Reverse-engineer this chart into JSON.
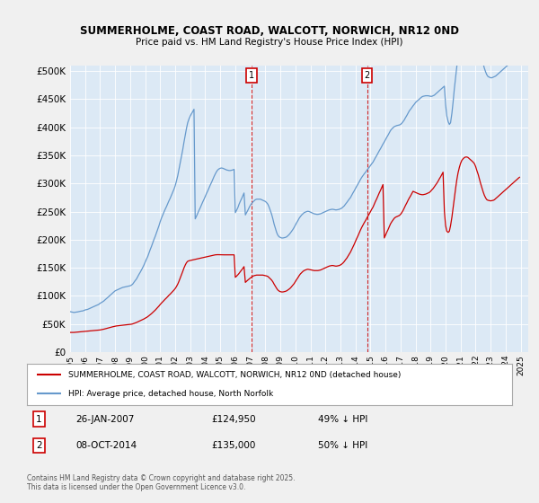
{
  "title": "SUMMERHOLME, COAST ROAD, WALCOTT, NORWICH, NR12 0ND",
  "subtitle": "Price paid vs. HM Land Registry's House Price Index (HPI)",
  "background_color": "#dce9f5",
  "plot_bg_color": "#dce9f5",
  "yticks": [
    0,
    50000,
    100000,
    150000,
    200000,
    250000,
    300000,
    350000,
    400000,
    450000,
    500000
  ],
  "xmin": 1995.0,
  "xmax": 2025.5,
  "ymin": 0,
  "ymax": 500000,
  "marker1_x": 2007.07,
  "marker1_y": 124950,
  "marker1_label": "1",
  "marker1_date": "26-JAN-2007",
  "marker1_price": "£124,950",
  "marker1_hpi": "49% ↓ HPI",
  "marker2_x": 2014.77,
  "marker2_y": 135000,
  "marker2_label": "2",
  "marker2_date": "08-OCT-2014",
  "marker2_price": "£135,000",
  "marker2_hpi": "50% ↓ HPI",
  "legend_red_label": "SUMMERHOLME, COAST ROAD, WALCOTT, NORWICH, NR12 0ND (detached house)",
  "legend_blue_label": "HPI: Average price, detached house, North Norfolk",
  "footnote": "Contains HM Land Registry data © Crown copyright and database right 2025.\nThis data is licensed under the Open Government Licence v3.0.",
  "red_line_color": "#cc0000",
  "blue_line_color": "#6699cc",
  "hpi_years": [
    1995.0,
    1995.08,
    1995.17,
    1995.25,
    1995.33,
    1995.42,
    1995.5,
    1995.58,
    1995.67,
    1995.75,
    1995.83,
    1995.92,
    1996.0,
    1996.08,
    1996.17,
    1996.25,
    1996.33,
    1996.42,
    1996.5,
    1996.58,
    1996.67,
    1996.75,
    1996.83,
    1996.92,
    1997.0,
    1997.08,
    1997.17,
    1997.25,
    1997.33,
    1997.42,
    1997.5,
    1997.58,
    1997.67,
    1997.75,
    1997.83,
    1997.92,
    1998.0,
    1998.08,
    1998.17,
    1998.25,
    1998.33,
    1998.42,
    1998.5,
    1998.58,
    1998.67,
    1998.75,
    1998.83,
    1998.92,
    1999.0,
    1999.08,
    1999.17,
    1999.25,
    1999.33,
    1999.42,
    1999.5,
    1999.58,
    1999.67,
    1999.75,
    1999.83,
    1999.92,
    2000.0,
    2000.08,
    2000.17,
    2000.25,
    2000.33,
    2000.42,
    2000.5,
    2000.58,
    2000.67,
    2000.75,
    2000.83,
    2000.92,
    2001.0,
    2001.08,
    2001.17,
    2001.25,
    2001.33,
    2001.42,
    2001.5,
    2001.58,
    2001.67,
    2001.75,
    2001.83,
    2001.92,
    2002.0,
    2002.08,
    2002.17,
    2002.25,
    2002.33,
    2002.42,
    2002.5,
    2002.58,
    2002.67,
    2002.75,
    2002.83,
    2002.92,
    2003.0,
    2003.08,
    2003.17,
    2003.25,
    2003.33,
    2003.42,
    2003.5,
    2003.58,
    2003.67,
    2003.75,
    2003.83,
    2003.92,
    2004.0,
    2004.08,
    2004.17,
    2004.25,
    2004.33,
    2004.42,
    2004.5,
    2004.58,
    2004.67,
    2004.75,
    2004.83,
    2004.92,
    2005.0,
    2005.08,
    2005.17,
    2005.25,
    2005.33,
    2005.42,
    2005.5,
    2005.58,
    2005.67,
    2005.75,
    2005.83,
    2005.92,
    2006.0,
    2006.08,
    2006.17,
    2006.25,
    2006.33,
    2006.42,
    2006.5,
    2006.58,
    2006.67,
    2006.75,
    2006.83,
    2006.92,
    2007.0,
    2007.08,
    2007.17,
    2007.25,
    2007.33,
    2007.42,
    2007.5,
    2007.58,
    2007.67,
    2007.75,
    2007.83,
    2007.92,
    2008.0,
    2008.08,
    2008.17,
    2008.25,
    2008.33,
    2008.42,
    2008.5,
    2008.58,
    2008.67,
    2008.75,
    2008.83,
    2008.92,
    2009.0,
    2009.08,
    2009.17,
    2009.25,
    2009.33,
    2009.42,
    2009.5,
    2009.58,
    2009.67,
    2009.75,
    2009.83,
    2009.92,
    2010.0,
    2010.08,
    2010.17,
    2010.25,
    2010.33,
    2010.42,
    2010.5,
    2010.58,
    2010.67,
    2010.75,
    2010.83,
    2010.92,
    2011.0,
    2011.08,
    2011.17,
    2011.25,
    2011.33,
    2011.42,
    2011.5,
    2011.58,
    2011.67,
    2011.75,
    2011.83,
    2011.92,
    2012.0,
    2012.08,
    2012.17,
    2012.25,
    2012.33,
    2012.42,
    2012.5,
    2012.58,
    2012.67,
    2012.75,
    2012.83,
    2012.92,
    2013.0,
    2013.08,
    2013.17,
    2013.25,
    2013.33,
    2013.42,
    2013.5,
    2013.58,
    2013.67,
    2013.75,
    2013.83,
    2013.92,
    2014.0,
    2014.08,
    2014.17,
    2014.25,
    2014.33,
    2014.42,
    2014.5,
    2014.58,
    2014.67,
    2014.75,
    2014.83,
    2014.92,
    2015.0,
    2015.08,
    2015.17,
    2015.25,
    2015.33,
    2015.42,
    2015.5,
    2015.58,
    2015.67,
    2015.75,
    2015.83,
    2015.92,
    2016.0,
    2016.08,
    2016.17,
    2016.25,
    2016.33,
    2016.42,
    2016.5,
    2016.58,
    2016.67,
    2016.75,
    2016.83,
    2016.92,
    2017.0,
    2017.08,
    2017.17,
    2017.25,
    2017.33,
    2017.42,
    2017.5,
    2017.58,
    2017.67,
    2017.75,
    2017.83,
    2017.92,
    2018.0,
    2018.08,
    2018.17,
    2018.25,
    2018.33,
    2018.42,
    2018.5,
    2018.58,
    2018.67,
    2018.75,
    2018.83,
    2018.92,
    2019.0,
    2019.08,
    2019.17,
    2019.25,
    2019.33,
    2019.42,
    2019.5,
    2019.58,
    2019.67,
    2019.75,
    2019.83,
    2019.92,
    2020.0,
    2020.08,
    2020.17,
    2020.25,
    2020.33,
    2020.42,
    2020.5,
    2020.58,
    2020.67,
    2020.75,
    2020.83,
    2020.92,
    2021.0,
    2021.08,
    2021.17,
    2021.25,
    2021.33,
    2021.42,
    2021.5,
    2021.58,
    2021.67,
    2021.75,
    2021.83,
    2021.92,
    2022.0,
    2022.08,
    2022.17,
    2022.25,
    2022.33,
    2022.42,
    2022.5,
    2022.58,
    2022.67,
    2022.75,
    2022.83,
    2022.92,
    2023.0,
    2023.08,
    2023.17,
    2023.25,
    2023.33,
    2023.42,
    2023.5,
    2023.58,
    2023.67,
    2023.75,
    2023.83,
    2023.92,
    2024.0,
    2024.08,
    2024.17,
    2024.25,
    2024.33,
    2024.42,
    2024.5,
    2024.58,
    2024.67,
    2024.75,
    2024.83,
    2024.92,
    2025.0
  ],
  "hpi_values": [
    72000,
    71500,
    71000,
    70500,
    70800,
    71200,
    71500,
    72000,
    72500,
    73000,
    73200,
    74000,
    75000,
    75500,
    76000,
    77000,
    78000,
    79000,
    80000,
    81000,
    82000,
    83000,
    84000,
    85000,
    87000,
    88000,
    89500,
    91000,
    93000,
    95000,
    97000,
    99000,
    101000,
    103000,
    105000,
    107000,
    109000,
    110000,
    111000,
    112000,
    113000,
    114000,
    115000,
    115500,
    116000,
    116500,
    117000,
    117500,
    118000,
    119000,
    121000,
    124000,
    127000,
    130000,
    134000,
    138000,
    142000,
    146000,
    150000,
    155000,
    160000,
    165000,
    170000,
    176000,
    182000,
    188000,
    194000,
    200000,
    206000,
    212000,
    218000,
    225000,
    232000,
    238000,
    244000,
    249000,
    254000,
    259000,
    264000,
    269000,
    274000,
    279000,
    284000,
    290000,
    296000,
    304000,
    314000,
    325000,
    336000,
    348000,
    360000,
    373000,
    386000,
    398000,
    408000,
    415000,
    420000,
    424000,
    428000,
    432000,
    237000,
    242000,
    247000,
    252000,
    257000,
    262000,
    267000,
    272000,
    277000,
    282000,
    287000,
    292000,
    297000,
    302000,
    307000,
    312000,
    317000,
    321000,
    324000,
    326000,
    327000,
    327500,
    327000,
    326000,
    325000,
    324000,
    323500,
    323000,
    323000,
    323500,
    324000,
    325000,
    248000,
    252000,
    257000,
    263000,
    268000,
    273000,
    278000,
    283000,
    244000,
    248000,
    252000,
    257000,
    261000,
    264000,
    267000,
    269000,
    271000,
    272000,
    272000,
    272000,
    272000,
    271000,
    270000,
    269000,
    268000,
    266000,
    263000,
    258000,
    252000,
    245000,
    237000,
    228000,
    220000,
    213000,
    208000,
    205000,
    204000,
    203000,
    203000,
    203500,
    204000,
    205000,
    207000,
    209000,
    212000,
    215000,
    218000,
    222000,
    226000,
    230000,
    234000,
    238000,
    241000,
    244000,
    246000,
    248000,
    249000,
    250000,
    250500,
    250000,
    249000,
    248000,
    247000,
    246000,
    245500,
    245000,
    245000,
    245500,
    246000,
    247000,
    248000,
    249000,
    250000,
    251000,
    252000,
    253000,
    253500,
    254000,
    254000,
    253500,
    253000,
    253000,
    253500,
    254000,
    255000,
    256000,
    258000,
    260000,
    263000,
    266000,
    269000,
    272000,
    275000,
    279000,
    283000,
    287000,
    291000,
    295000,
    299000,
    303000,
    307000,
    311000,
    314000,
    317000,
    320000,
    323000,
    326000,
    329000,
    332000,
    335000,
    338000,
    342000,
    346000,
    350000,
    354000,
    358000,
    362000,
    366000,
    370000,
    374000,
    378000,
    382000,
    386000,
    390000,
    394000,
    397000,
    399000,
    401000,
    402000,
    403000,
    403500,
    404000,
    405000,
    407000,
    410000,
    413000,
    417000,
    421000,
    425000,
    429000,
    432000,
    435000,
    438000,
    441000,
    444000,
    446000,
    448000,
    450000,
    452000,
    454000,
    455000,
    455500,
    456000,
    456000,
    456000,
    455500,
    455000,
    455000,
    456000,
    457000,
    459000,
    461000,
    463000,
    465000,
    467000,
    469000,
    471000,
    473000,
    440000,
    420000,
    410000,
    405000,
    408000,
    425000,
    445000,
    468000,
    490000,
    510000,
    528000,
    542000,
    554000,
    562000,
    568000,
    572000,
    574000,
    575000,
    575000,
    574000,
    572000,
    570000,
    567000,
    564000,
    560000,
    555000,
    548000,
    540000,
    531000,
    522000,
    513000,
    505000,
    498000,
    493000,
    490000,
    489000,
    488000,
    488000,
    489000,
    490000,
    491000,
    493000,
    495000,
    497000,
    499000,
    501000,
    503000,
    505000,
    507000,
    509000,
    511000,
    513000,
    515000,
    517000,
    519000,
    521000,
    523000,
    525000,
    527000,
    529000,
    531000
  ],
  "prop_years": [
    1995.0,
    1995.08,
    1995.17,
    1995.25,
    1995.33,
    1995.42,
    1995.5,
    1995.58,
    1995.67,
    1995.75,
    1995.83,
    1995.92,
    1996.0,
    1996.08,
    1996.17,
    1996.25,
    1996.33,
    1996.42,
    1996.5,
    1996.58,
    1996.67,
    1996.75,
    1996.83,
    1996.92,
    1997.0,
    1997.08,
    1997.17,
    1997.25,
    1997.33,
    1997.42,
    1997.5,
    1997.58,
    1997.67,
    1997.75,
    1997.83,
    1997.92,
    1998.0,
    1998.08,
    1998.17,
    1998.25,
    1998.33,
    1998.42,
    1998.5,
    1998.58,
    1998.67,
    1998.75,
    1998.83,
    1998.92,
    1999.0,
    1999.08,
    1999.17,
    1999.25,
    1999.33,
    1999.42,
    1999.5,
    1999.58,
    1999.67,
    1999.75,
    1999.83,
    1999.92,
    2000.0,
    2000.08,
    2000.17,
    2000.25,
    2000.33,
    2000.42,
    2000.5,
    2000.58,
    2000.67,
    2000.75,
    2000.83,
    2000.92,
    2001.0,
    2001.08,
    2001.17,
    2001.25,
    2001.33,
    2001.42,
    2001.5,
    2001.58,
    2001.67,
    2001.75,
    2001.83,
    2001.92,
    2002.0,
    2002.08,
    2002.17,
    2002.25,
    2002.33,
    2002.42,
    2002.5,
    2002.58,
    2002.67,
    2002.75,
    2002.83,
    2002.92,
    2003.0,
    2003.08,
    2003.17,
    2003.25,
    2003.33,
    2003.42,
    2003.5,
    2003.58,
    2003.67,
    2003.75,
    2003.83,
    2003.92,
    2004.0,
    2004.08,
    2004.17,
    2004.25,
    2004.33,
    2004.42,
    2004.5,
    2004.58,
    2004.67,
    2004.75,
    2004.83,
    2004.92,
    2005.0,
    2005.08,
    2005.17,
    2005.25,
    2005.33,
    2005.42,
    2005.5,
    2005.58,
    2005.67,
    2005.75,
    2005.83,
    2005.92,
    2006.0,
    2006.08,
    2006.17,
    2006.25,
    2006.33,
    2006.42,
    2006.5,
    2006.58,
    2006.67,
    2006.75,
    2006.83,
    2006.92,
    2007.0,
    2007.08,
    2007.17,
    2007.25,
    2007.33,
    2007.42,
    2007.5,
    2007.58,
    2007.67,
    2007.75,
    2007.83,
    2007.92,
    2008.0,
    2008.08,
    2008.17,
    2008.25,
    2008.33,
    2008.42,
    2008.5,
    2008.58,
    2008.67,
    2008.75,
    2008.83,
    2008.92,
    2009.0,
    2009.08,
    2009.17,
    2009.25,
    2009.33,
    2009.42,
    2009.5,
    2009.58,
    2009.67,
    2009.75,
    2009.83,
    2009.92,
    2010.0,
    2010.08,
    2010.17,
    2010.25,
    2010.33,
    2010.42,
    2010.5,
    2010.58,
    2010.67,
    2010.75,
    2010.83,
    2010.92,
    2011.0,
    2011.08,
    2011.17,
    2011.25,
    2011.33,
    2011.42,
    2011.5,
    2011.58,
    2011.67,
    2011.75,
    2011.83,
    2011.92,
    2012.0,
    2012.08,
    2012.17,
    2012.25,
    2012.33,
    2012.42,
    2012.5,
    2012.58,
    2012.67,
    2012.75,
    2012.83,
    2012.92,
    2013.0,
    2013.08,
    2013.17,
    2013.25,
    2013.33,
    2013.42,
    2013.5,
    2013.58,
    2013.67,
    2013.75,
    2013.83,
    2013.92,
    2014.0,
    2014.08,
    2014.17,
    2014.25,
    2014.33,
    2014.42,
    2014.5,
    2014.58,
    2014.67,
    2014.75,
    2014.83,
    2014.92,
    2015.0,
    2015.08,
    2015.17,
    2015.25,
    2015.33,
    2015.42,
    2015.5,
    2015.58,
    2015.67,
    2015.75,
    2015.83,
    2015.92,
    2016.0,
    2016.08,
    2016.17,
    2016.25,
    2016.33,
    2016.42,
    2016.5,
    2016.58,
    2016.67,
    2016.75,
    2016.83,
    2016.92,
    2017.0,
    2017.08,
    2017.17,
    2017.25,
    2017.33,
    2017.42,
    2017.5,
    2017.58,
    2017.67,
    2017.75,
    2017.83,
    2017.92,
    2018.0,
    2018.08,
    2018.17,
    2018.25,
    2018.33,
    2018.42,
    2018.5,
    2018.58,
    2018.67,
    2018.75,
    2018.83,
    2018.92,
    2019.0,
    2019.08,
    2019.17,
    2019.25,
    2019.33,
    2019.42,
    2019.5,
    2019.58,
    2019.67,
    2019.75,
    2019.83,
    2019.92,
    2020.0,
    2020.08,
    2020.17,
    2020.25,
    2020.33,
    2020.42,
    2020.5,
    2020.58,
    2020.67,
    2020.75,
    2020.83,
    2020.92,
    2021.0,
    2021.08,
    2021.17,
    2021.25,
    2021.33,
    2021.42,
    2021.5,
    2021.58,
    2021.67,
    2021.75,
    2021.83,
    2021.92,
    2022.0,
    2022.08,
    2022.17,
    2022.25,
    2022.33,
    2022.42,
    2022.5,
    2022.58,
    2022.67,
    2022.75,
    2022.83,
    2022.92,
    2023.0,
    2023.08,
    2023.17,
    2023.25,
    2023.33,
    2023.42,
    2023.5,
    2023.58,
    2023.67,
    2023.75,
    2023.83,
    2023.92,
    2024.0,
    2024.08,
    2024.17,
    2024.25,
    2024.33,
    2024.42,
    2024.5,
    2024.58,
    2024.67,
    2024.75,
    2024.83,
    2024.92,
    2025.0
  ],
  "prop_values": [
    35000,
    35000,
    35000,
    35000,
    35200,
    35400,
    35600,
    35800,
    36000,
    36200,
    36400,
    36600,
    36800,
    37000,
    37200,
    37400,
    37600,
    37800,
    38000,
    38200,
    38400,
    38600,
    38800,
    39000,
    39400,
    39800,
    40300,
    40800,
    41400,
    42000,
    42600,
    43200,
    43800,
    44400,
    45000,
    45600,
    46200,
    46500,
    46800,
    47100,
    47400,
    47700,
    48000,
    48200,
    48400,
    48600,
    48800,
    49000,
    49200,
    49600,
    50200,
    51000,
    51800,
    52700,
    53700,
    54700,
    55700,
    56700,
    57800,
    59000,
    60200,
    61500,
    63000,
    64700,
    66500,
    68400,
    70400,
    72500,
    74700,
    77000,
    79400,
    82000,
    84700,
    87100,
    89500,
    91800,
    94100,
    96400,
    98700,
    101000,
    103300,
    105600,
    107900,
    110500,
    113100,
    116500,
    121000,
    126000,
    131500,
    137500,
    143500,
    149500,
    155000,
    159000,
    161500,
    162500,
    163000,
    163500,
    164000,
    164500,
    165000,
    165500,
    166000,
    166500,
    167000,
    167500,
    168000,
    168500,
    169000,
    169500,
    170000,
    170500,
    171000,
    171500,
    172000,
    172500,
    173000,
    173200,
    173300,
    173200,
    173000,
    173000,
    173000,
    173000,
    173000,
    173000,
    173000,
    173000,
    173000,
    173000,
    173000,
    173000,
    133000,
    135000,
    137500,
    140000,
    143000,
    146000,
    149000,
    152000,
    124000,
    126000,
    128000,
    130000,
    132000,
    133500,
    135000,
    136000,
    136500,
    137000,
    137000,
    137000,
    137000,
    137000,
    137000,
    136500,
    136000,
    135500,
    134500,
    132500,
    130500,
    128000,
    125000,
    121000,
    117000,
    113500,
    110500,
    108500,
    107500,
    107000,
    107000,
    107500,
    108000,
    109000,
    110500,
    112000,
    114000,
    116500,
    119000,
    122000,
    125500,
    129000,
    132500,
    136000,
    139000,
    141500,
    143500,
    145000,
    146000,
    147000,
    147500,
    147000,
    146500,
    146000,
    145500,
    145000,
    145000,
    145000,
    145000,
    145500,
    146000,
    147000,
    148000,
    149000,
    150000,
    151000,
    152000,
    153000,
    153500,
    154000,
    154000,
    153500,
    153000,
    153000,
    153500,
    154000,
    155000,
    156500,
    158500,
    161000,
    164000,
    167000,
    170500,
    174000,
    178000,
    182500,
    187000,
    192000,
    197000,
    202000,
    207000,
    212000,
    217000,
    222000,
    226000,
    230000,
    234000,
    238000,
    242000,
    246000,
    250000,
    254000,
    258000,
    263000,
    268000,
    273000,
    278000,
    283000,
    288000,
    293000,
    298000,
    203000,
    208000,
    213000,
    218000,
    223000,
    228000,
    232000,
    235000,
    238000,
    240000,
    241000,
    242000,
    243000,
    245000,
    248000,
    252000,
    256500,
    261000,
    265500,
    270000,
    274000,
    278000,
    282000,
    286000,
    285000,
    284000,
    283000,
    282000,
    281000,
    280500,
    280000,
    280000,
    280500,
    281000,
    282000,
    283000,
    284000,
    286000,
    288500,
    291000,
    294000,
    297000,
    300500,
    304000,
    308000,
    312000,
    316000,
    320000,
    250000,
    225000,
    215000,
    213000,
    215000,
    225000,
    240000,
    257000,
    275000,
    292000,
    307000,
    319000,
    329000,
    336000,
    341000,
    344000,
    346000,
    347000,
    347000,
    346000,
    344000,
    342000,
    340000,
    338000,
    335000,
    330000,
    323000,
    316000,
    308000,
    300000,
    292000,
    285000,
    279000,
    274000,
    271000,
    270000,
    269500,
    269000,
    269500,
    270000,
    271000,
    273000,
    275000,
    277000,
    279000,
    281000,
    283000,
    285000,
    287000,
    289000,
    291000,
    293000,
    295000,
    297000,
    299000,
    301000,
    303000,
    305000,
    307000,
    309000,
    311000
  ]
}
